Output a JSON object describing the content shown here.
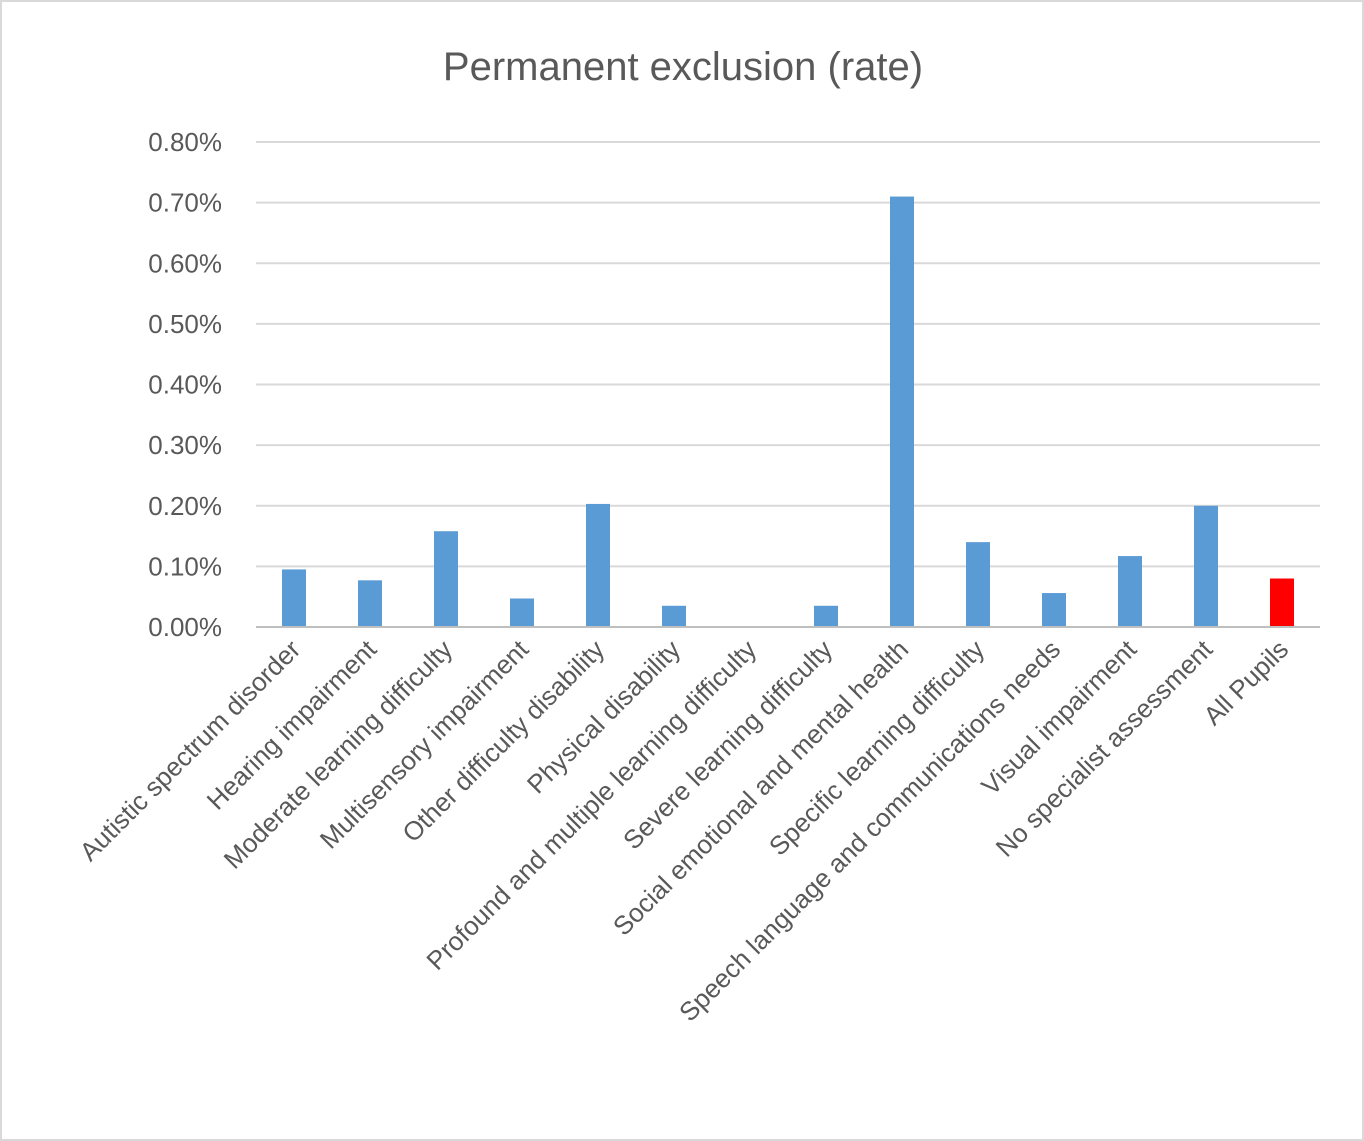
{
  "chart_data": {
    "type": "bar",
    "title": "Permanent exclusion (rate)",
    "xlabel": "",
    "ylabel": "",
    "ylim": [
      0,
      0.8
    ],
    "yticks": [
      "0.00%",
      "0.10%",
      "0.20%",
      "0.30%",
      "0.40%",
      "0.50%",
      "0.60%",
      "0.70%",
      "0.80%"
    ],
    "categories": [
      "Autistic spectrum disorder",
      "Hearing impairment",
      "Moderate learning difficulty",
      "Multisensory impairment",
      "Other difficulty disability",
      "Physical disability",
      "Profound and multiple learning difficulty",
      "Severe learning difficulty",
      "Social emotional and mental health",
      "Specific learning difficulty",
      "Speech language and communications needs",
      "Visual impairment",
      "No specialist assessment",
      "All Pupils"
    ],
    "values": [
      0.095,
      0.077,
      0.158,
      0.047,
      0.203,
      0.035,
      0.0,
      0.035,
      0.71,
      0.14,
      0.056,
      0.117,
      0.2,
      0.08
    ],
    "value_unit": "%",
    "bar_colors": [
      "#5b9bd5",
      "#5b9bd5",
      "#5b9bd5",
      "#5b9bd5",
      "#5b9bd5",
      "#5b9bd5",
      "#5b9bd5",
      "#5b9bd5",
      "#5b9bd5",
      "#5b9bd5",
      "#5b9bd5",
      "#5b9bd5",
      "#5b9bd5",
      "#ff0000"
    ],
    "grid": true,
    "legend": "none"
  }
}
